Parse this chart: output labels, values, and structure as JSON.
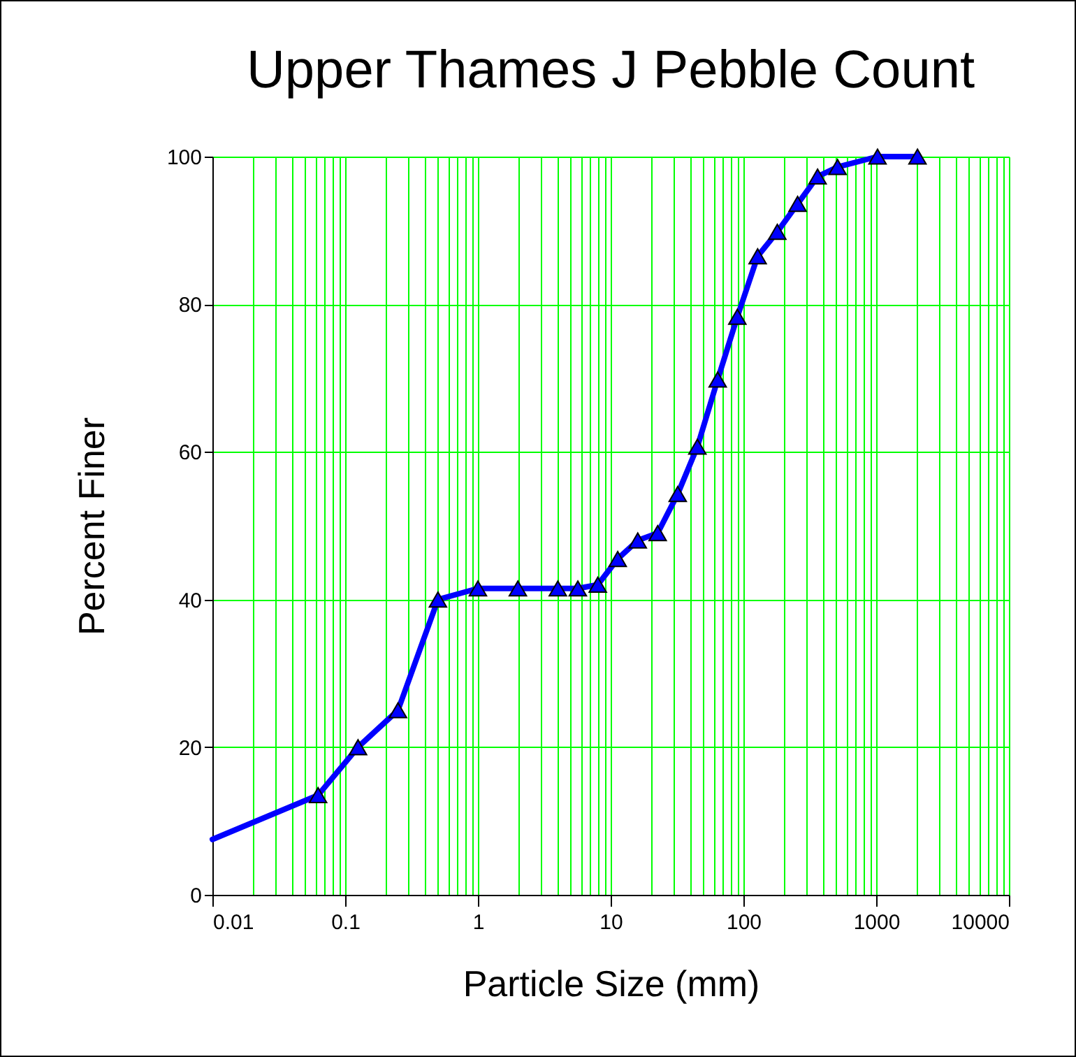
{
  "chart_data": {
    "type": "line",
    "title": "Upper Thames J Pebble Count",
    "xlabel": "Particle Size (mm)",
    "ylabel": "Percent Finer",
    "log": "x",
    "grid": true,
    "xlim": [
      0.01,
      10000
    ],
    "ylim": [
      0,
      100
    ],
    "xticks": [
      0.01,
      {
        "value": 0.02,
        "label": null
      },
      {
        "value": 0.03,
        "label": null
      },
      {
        "value": 0.04,
        "label": null
      },
      {
        "value": 0.05,
        "label": null
      },
      {
        "value": 0.06,
        "label": null
      },
      {
        "value": 0.07,
        "label": null
      },
      {
        "value": 0.08,
        "label": null
      },
      {
        "value": 0.09,
        "label": null
      },
      0.1,
      {
        "value": 0.2,
        "label": null
      },
      {
        "value": 0.3,
        "label": null
      },
      {
        "value": 0.4,
        "label": null
      },
      {
        "value": 0.5,
        "label": null
      },
      {
        "value": 0.6,
        "label": null
      },
      {
        "value": 0.7,
        "label": null
      },
      {
        "value": 0.8,
        "label": null
      },
      {
        "value": 0.9,
        "label": null
      },
      1,
      {
        "value": 2,
        "label": null
      },
      {
        "value": 3,
        "label": null
      },
      {
        "value": 4,
        "label": null
      },
      {
        "value": 5,
        "label": null
      },
      {
        "value": 6,
        "label": null
      },
      {
        "value": 7,
        "label": null
      },
      {
        "value": 8,
        "label": null
      },
      {
        "value": 9,
        "label": null
      },
      10,
      {
        "value": 20,
        "label": null
      },
      {
        "value": 30,
        "label": null
      },
      {
        "value": 40,
        "label": null
      },
      {
        "value": 50,
        "label": null
      },
      {
        "value": 60,
        "label": null
      },
      {
        "value": 70,
        "label": null
      },
      {
        "value": 80,
        "label": null
      },
      {
        "value": 90,
        "label": null
      },
      100,
      {
        "value": 200,
        "label": null
      },
      {
        "value": 300,
        "label": null
      },
      {
        "value": 400,
        "label": null
      },
      {
        "value": 500,
        "label": null
      },
      {
        "value": 600,
        "label": null
      },
      {
        "value": 700,
        "label": null
      },
      {
        "value": 800,
        "label": null
      },
      {
        "value": 900,
        "label": null
      },
      1000,
      {
        "value": 2000,
        "label": null
      },
      {
        "value": 3000,
        "label": null
      },
      {
        "value": 4000,
        "label": null
      },
      {
        "value": 5000,
        "label": null
      },
      {
        "value": 6000,
        "label": null
      },
      {
        "value": 7000,
        "label": null
      },
      {
        "value": 8000,
        "label": null
      },
      {
        "value": 9000,
        "label": null
      },
      10000
    ],
    "yticks": [
      0,
      20,
      40,
      60,
      80,
      100
    ],
    "series": [
      {
        "color": "#0000ff",
        "x": [
          0.01,
          0.0625
        ],
        "values": [
          7.5,
          13.5
        ]
      },
      {
        "color": "#0000ff",
        "marker": "triangle",
        "x": [
          0.0625,
          0.125,
          0.25,
          0.5,
          1,
          2,
          4,
          5.66,
          8,
          11.3,
          16,
          22.6,
          32,
          45,
          64,
          90,
          128,
          180,
          256,
          362,
          512,
          1024,
          2048
        ],
        "values": [
          13.5,
          20,
          25,
          40,
          41.5,
          41.5,
          41.5,
          41.5,
          42,
          45.5,
          48,
          49,
          54.3,
          60.7,
          69.8,
          78.3,
          86.5,
          89.8,
          93.6,
          97.3,
          98.6,
          100,
          100
        ]
      }
    ]
  }
}
